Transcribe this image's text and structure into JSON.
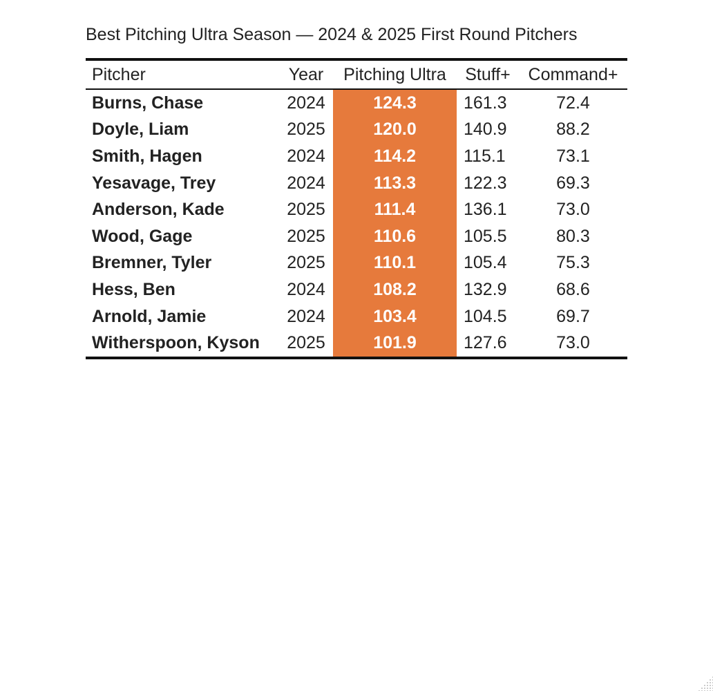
{
  "chart_data": {
    "type": "table",
    "title": "Best Pitching Ultra Season — 2024 & 2025 First Round Pitchers",
    "columns": [
      "Pitcher",
      "Year",
      "Pitching Ultra",
      "Stuff+",
      "Command+"
    ],
    "highlight_column": "Pitching Ultra",
    "highlight_color": "#e67a3c",
    "rows": [
      {
        "pitcher": "Burns, Chase",
        "year": "2024",
        "pitching_ultra": "124.3",
        "stuff_plus": "161.3",
        "command_plus": "72.4"
      },
      {
        "pitcher": "Doyle, Liam",
        "year": "2025",
        "pitching_ultra": "120.0",
        "stuff_plus": "140.9",
        "command_plus": "88.2"
      },
      {
        "pitcher": "Smith, Hagen",
        "year": "2024",
        "pitching_ultra": "114.2",
        "stuff_plus": "115.1",
        "command_plus": "73.1"
      },
      {
        "pitcher": "Yesavage, Trey",
        "year": "2024",
        "pitching_ultra": "113.3",
        "stuff_plus": "122.3",
        "command_plus": "69.3"
      },
      {
        "pitcher": "Anderson, Kade",
        "year": "2025",
        "pitching_ultra": "111.4",
        "stuff_plus": "136.1",
        "command_plus": "73.0"
      },
      {
        "pitcher": "Wood, Gage",
        "year": "2025",
        "pitching_ultra": "110.6",
        "stuff_plus": "105.5",
        "command_plus": "80.3"
      },
      {
        "pitcher": "Bremner, Tyler",
        "year": "2025",
        "pitching_ultra": "110.1",
        "stuff_plus": "105.4",
        "command_plus": "75.3"
      },
      {
        "pitcher": "Hess, Ben",
        "year": "2024",
        "pitching_ultra": "108.2",
        "stuff_plus": "132.9",
        "command_plus": "68.6"
      },
      {
        "pitcher": "Arnold, Jamie",
        "year": "2024",
        "pitching_ultra": "103.4",
        "stuff_plus": "104.5",
        "command_plus": "69.7"
      },
      {
        "pitcher": "Witherspoon, Kyson",
        "year": "2025",
        "pitching_ultra": "101.9",
        "stuff_plus": "127.6",
        "command_plus": "73.0"
      }
    ]
  }
}
